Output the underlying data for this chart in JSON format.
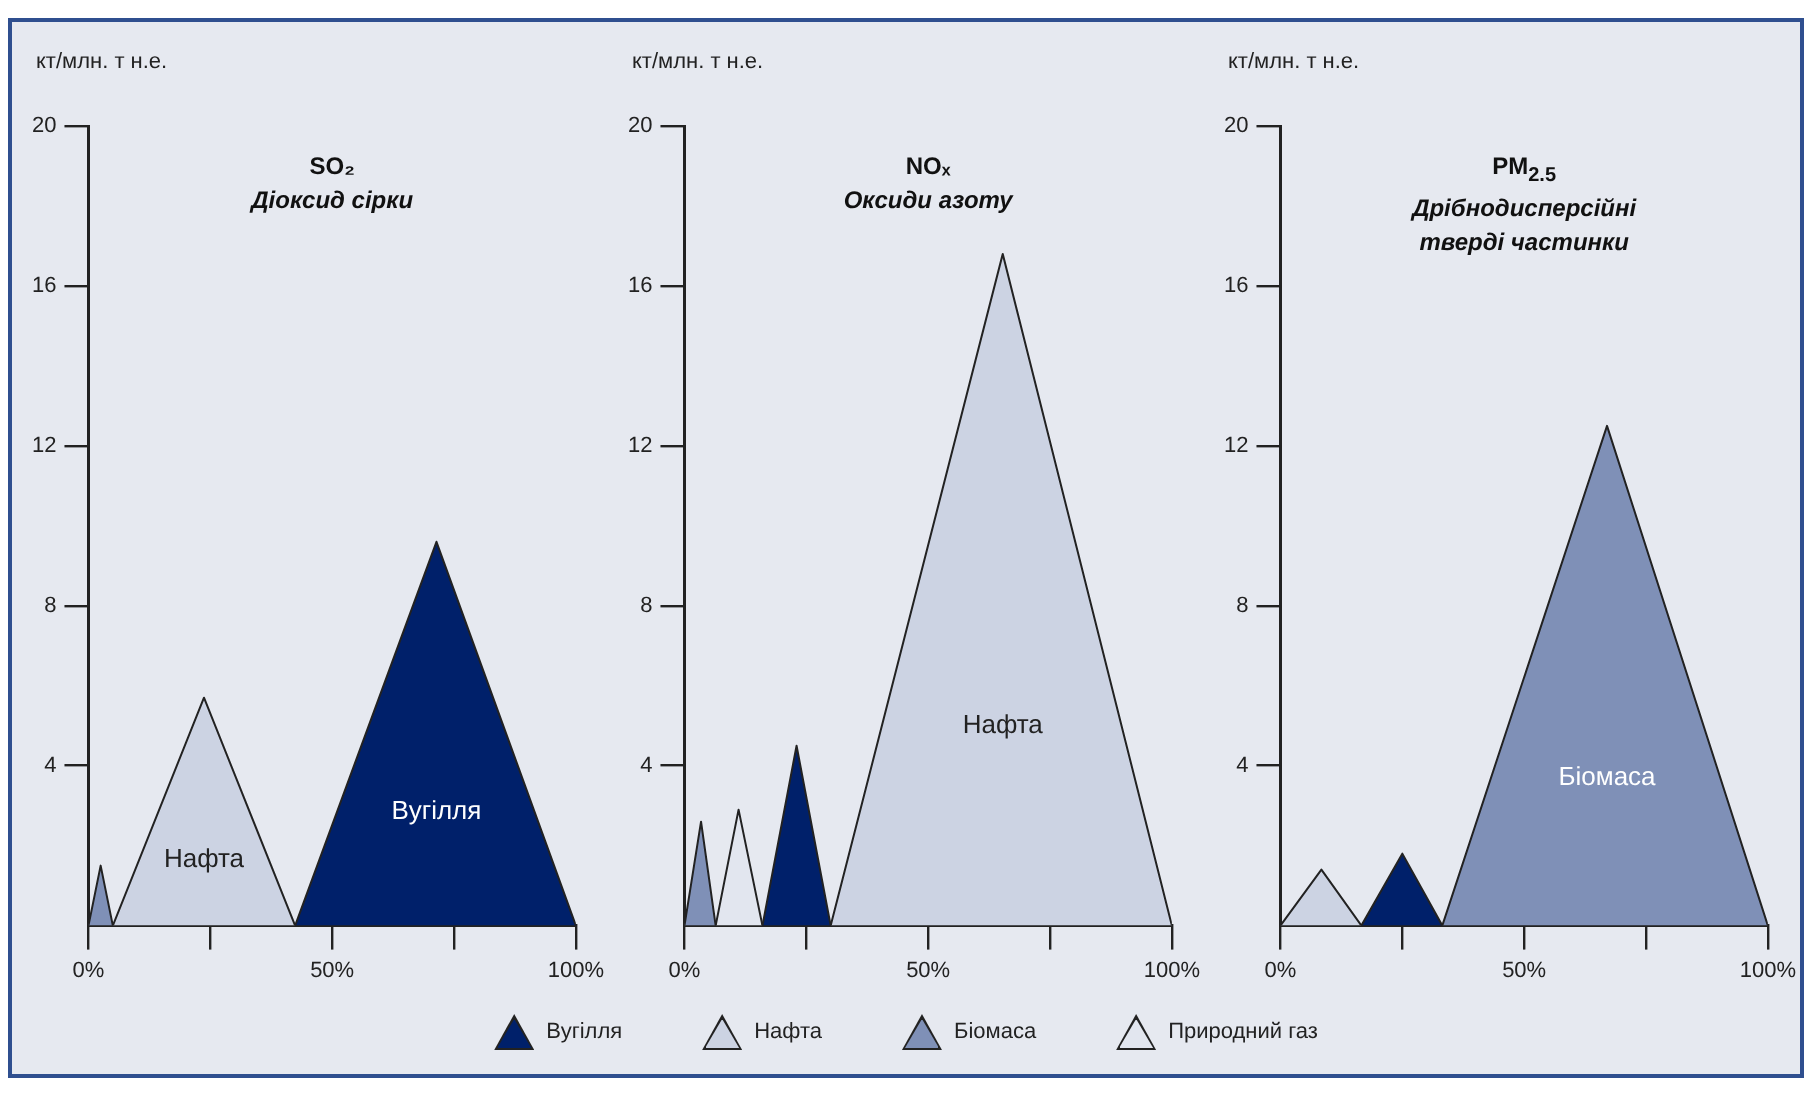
{
  "chart_data": [
    {
      "type": "area",
      "title": "SO₂",
      "subtitle": "Діоксид сірки",
      "ylabel": "кт/млн. т н.е.",
      "xlim": [
        0,
        100
      ],
      "xticks": [
        {
          "value": 0,
          "label": "0%"
        },
        {
          "value": 25,
          "label": null
        },
        {
          "value": 50,
          "label": "50%"
        },
        {
          "value": 75,
          "label": null
        },
        {
          "value": 100,
          "label": "100%"
        }
      ],
      "ylim": [
        0,
        20
      ],
      "yticks": [
        4,
        8,
        12,
        16,
        20
      ],
      "grid": false,
      "marker": "none",
      "series": [
        {
          "name": "Вугілля",
          "color": "#00206a",
          "x": [
            42.4,
            71.4,
            100
          ],
          "values": [
            0,
            9.6,
            0
          ]
        },
        {
          "name": "Нафта",
          "color": "#ccd3e3",
          "x": [
            5,
            23.7,
            42.4
          ],
          "values": [
            0,
            5.7,
            0
          ]
        },
        {
          "color": "#7f90b7",
          "x": [
            0,
            2.5,
            5
          ],
          "values": [
            0,
            1.5,
            0
          ]
        }
      ]
    },
    {
      "type": "area",
      "title": "NOₓ",
      "subtitle": "Оксиди азоту",
      "ylabel": "кт/млн. т н.е.",
      "xlim": [
        0,
        100
      ],
      "xticks": [
        {
          "value": 0,
          "label": "0%"
        },
        {
          "value": 25,
          "label": null
        },
        {
          "value": 50,
          "label": "50%"
        },
        {
          "value": 75,
          "label": null
        },
        {
          "value": 100,
          "label": "100%"
        }
      ],
      "ylim": [
        0,
        20
      ],
      "yticks": [
        4,
        8,
        12,
        16,
        20
      ],
      "grid": false,
      "legend": "bottom",
      "marker": "none",
      "series": [
        {
          "name": "Вугілля",
          "color": "#00206a",
          "x": [
            16,
            23,
            30
          ],
          "values": [
            0,
            4.5,
            0
          ]
        },
        {
          "name": "Нафта",
          "color": "#ccd3e3",
          "x": [
            30,
            65.3,
            100
          ],
          "values": [
            0,
            16.8,
            0
          ]
        },
        {
          "name": "Біомаса",
          "color": "#7f90b7",
          "x": [
            0,
            3.4,
            6.4
          ],
          "values": [
            0,
            2.6,
            0
          ]
        },
        {
          "name": "Природний газ",
          "color": "#e2e6ef",
          "x": [
            6.4,
            11.1,
            16
          ],
          "values": [
            0,
            2.9,
            0
          ]
        }
      ]
    },
    {
      "type": "area",
      "title": "PM$_{2.5}$",
      "subtitle": "Дрібнодисперсійні\nтверді частинки",
      "ylabel": "кт/млн. т н.е.",
      "xlim": [
        0,
        100
      ],
      "xticks": [
        {
          "value": 0,
          "label": "0%"
        },
        {
          "value": 25,
          "label": null
        },
        {
          "value": 50,
          "label": "50%"
        },
        {
          "value": 75,
          "label": null
        },
        {
          "value": 100,
          "label": "100%"
        }
      ],
      "ylim": [
        0,
        20
      ],
      "yticks": [
        4,
        8,
        12,
        16,
        20
      ],
      "grid": false,
      "marker": "none",
      "series": [
        {
          "color": "#ccd3e3",
          "x": [
            0,
            8.4,
            16.6
          ],
          "values": [
            0,
            1.4,
            0
          ]
        },
        {
          "color": "#00206a",
          "x": [
            16.6,
            25,
            33.2
          ],
          "values": [
            0,
            1.8,
            0
          ]
        },
        {
          "name": "Біомаса",
          "color": "#7f90b7",
          "x": [
            33.2,
            67,
            100
          ],
          "values": [
            0,
            12.5,
            0
          ]
        }
      ]
    }
  ]
}
